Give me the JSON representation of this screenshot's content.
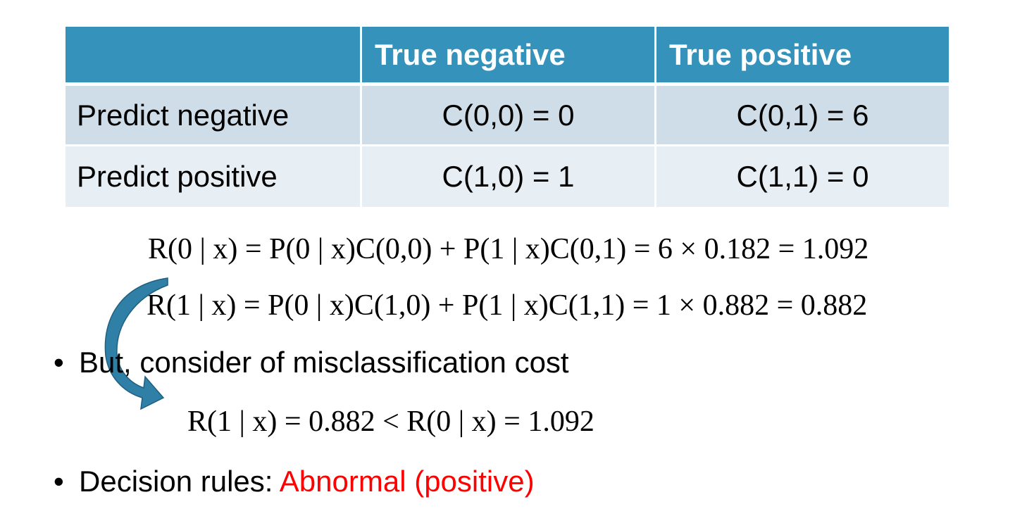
{
  "table": {
    "headers": [
      "",
      "True negative",
      "True positive"
    ],
    "rows": [
      {
        "label": "Predict negative",
        "cells": [
          "C(0,0) = 0",
          "C(0,1) = 6"
        ]
      },
      {
        "label": "Predict positive",
        "cells": [
          "C(1,0) = 1",
          "C(1,1) = 0"
        ]
      }
    ]
  },
  "equations": {
    "eq1": "R(0 | x) = P(0 | x)C(0,0) + P(1 | x)C(0,1) = 6 × 0.182 = 1.092",
    "eq2": "R(1 | x) = P(0 | x)C(1,0) + P(1 | x)C(1,1) = 1 × 0.882 = 0.882",
    "eq3": "R(1 | x) = 0.882 < R(0 | x) = 1.092"
  },
  "bullets": {
    "b1": "But, consider of misclassification cost",
    "b2_prefix": "Decision rules: ",
    "b2_highlight": "Abnormal (positive)",
    "bullet_char": "•"
  },
  "colors": {
    "header_bg": "#3592bb",
    "row1_bg": "#cedde8",
    "row2_bg": "#e8eff4",
    "highlight": "#ff0000",
    "arrow": "#2f7fa6"
  },
  "icons": {
    "arrow": "curved-arrow-icon"
  }
}
